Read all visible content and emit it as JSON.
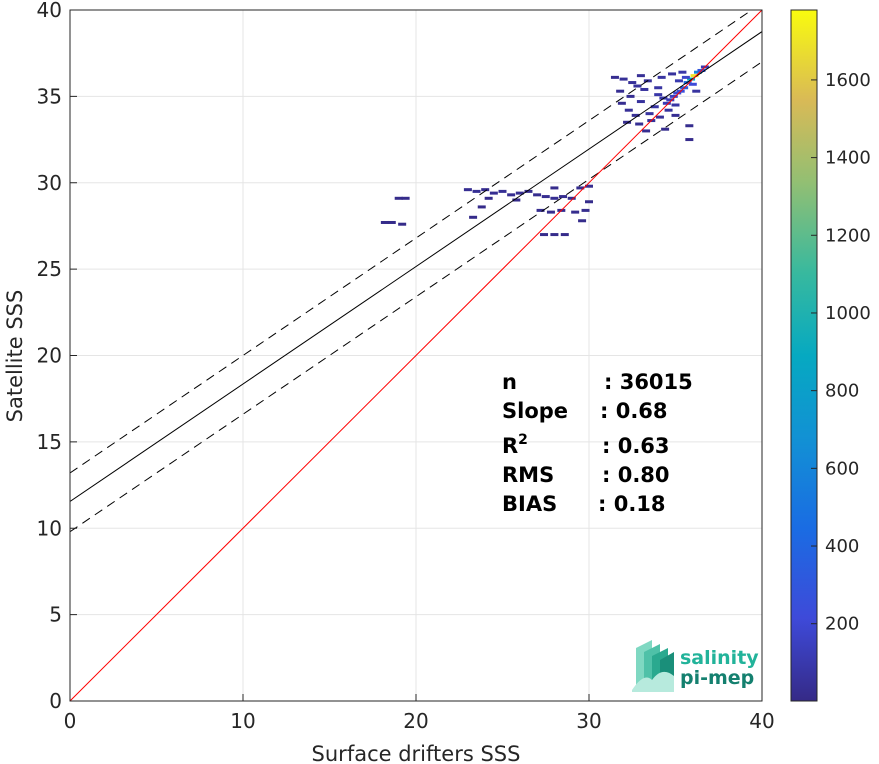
{
  "chart_data": {
    "type": "heatmap",
    "title": "",
    "xlabel": "Surface drifters SSS",
    "ylabel": "Satellite SSS",
    "xlim": [
      0,
      40
    ],
    "ylim": [
      0,
      40
    ],
    "xticks": [
      0,
      10,
      20,
      30,
      40
    ],
    "yticks": [
      0,
      5,
      10,
      15,
      20,
      25,
      30,
      35,
      40
    ],
    "grid": true,
    "colorbar": {
      "range": [
        1,
        1780
      ],
      "ticks": [
        200,
        400,
        600,
        800,
        1000,
        1200,
        1400,
        1600
      ],
      "colormap": "parula"
    },
    "lines": {
      "identity": {
        "slope": 1,
        "intercept": 0,
        "color": "#ff0000"
      },
      "fit": {
        "slope": 0.68,
        "intercept": 11.55,
        "color": "#000000"
      },
      "fit_upper": {
        "slope": 0.68,
        "intercept": 13.2,
        "color": "#000000",
        "style": "dashed"
      },
      "fit_lower": {
        "slope": 0.68,
        "intercept": 9.8,
        "color": "#000000",
        "style": "dashed"
      }
    },
    "stats": [
      {
        "label": "n",
        "value": ": 36015"
      },
      {
        "label": "Slope",
        "value": ": 0.68"
      },
      {
        "label": "R",
        "sup": "2",
        "value": ": 0.63"
      },
      {
        "label": "RMS",
        "value": ": 0.80"
      },
      {
        "label": "BIAS",
        "value": ": 0.18"
      }
    ],
    "points": [
      [
        36.1,
        36.2,
        1700
      ],
      [
        35.9,
        36.0,
        900
      ],
      [
        36.3,
        36.4,
        600
      ],
      [
        35.7,
        35.8,
        450
      ],
      [
        35.5,
        35.5,
        350
      ],
      [
        36.5,
        36.5,
        300
      ],
      [
        35.3,
        35.3,
        250
      ],
      [
        35.1,
        35.2,
        200
      ],
      [
        34.9,
        35.0,
        160
      ],
      [
        36.0,
        35.7,
        220
      ],
      [
        35.6,
        36.1,
        180
      ],
      [
        34.7,
        34.8,
        140
      ],
      [
        34.5,
        34.6,
        120
      ],
      [
        36.7,
        36.7,
        110
      ],
      [
        34.3,
        34.9,
        100
      ],
      [
        34.0,
        35.1,
        90
      ],
      [
        33.8,
        34.4,
        80
      ],
      [
        33.5,
        34.0,
        70
      ],
      [
        33.2,
        35.4,
        60
      ],
      [
        32.8,
        35.6,
        55
      ],
      [
        32.5,
        35.8,
        50
      ],
      [
        32.0,
        36.0,
        45
      ],
      [
        33.0,
        34.7,
        60
      ],
      [
        33.4,
        35.9,
        50
      ],
      [
        34.2,
        36.1,
        70
      ],
      [
        34.8,
        36.3,
        60
      ],
      [
        32.3,
        34.2,
        45
      ],
      [
        32.7,
        33.9,
        40
      ],
      [
        33.6,
        33.6,
        50
      ],
      [
        34.1,
        33.8,
        45
      ],
      [
        32.9,
        33.4,
        35
      ],
      [
        34.6,
        34.2,
        60
      ],
      [
        35.0,
        34.5,
        80
      ],
      [
        31.8,
        35.3,
        30
      ],
      [
        31.5,
        36.1,
        25
      ],
      [
        35.8,
        33.3,
        20
      ],
      [
        35.8,
        32.5,
        15
      ],
      [
        33.3,
        33.0,
        25
      ],
      [
        34.4,
        33.1,
        20
      ],
      [
        32.2,
        33.5,
        20
      ],
      [
        35.2,
        35.9,
        110
      ],
      [
        34.0,
        35.5,
        75
      ],
      [
        33.0,
        36.2,
        40
      ],
      [
        35.4,
        36.4,
        90
      ],
      [
        36.2,
        35.3,
        70
      ],
      [
        35.0,
        33.9,
        30
      ],
      [
        32.4,
        35.0,
        30
      ],
      [
        31.9,
        34.6,
        25
      ],
      [
        23.0,
        29.6,
        30
      ],
      [
        23.5,
        29.5,
        35
      ],
      [
        24.0,
        29.6,
        25
      ],
      [
        24.5,
        29.4,
        30
      ],
      [
        25.0,
        29.5,
        35
      ],
      [
        25.5,
        29.3,
        25
      ],
      [
        26.0,
        29.4,
        30
      ],
      [
        26.5,
        29.5,
        25
      ],
      [
        27.0,
        29.3,
        20
      ],
      [
        27.5,
        29.2,
        25
      ],
      [
        28.0,
        29.1,
        30
      ],
      [
        28.5,
        29.2,
        25
      ],
      [
        29.0,
        29.1,
        20
      ],
      [
        29.5,
        29.7,
        25
      ],
      [
        30.0,
        29.8,
        20
      ],
      [
        27.2,
        28.4,
        25
      ],
      [
        27.8,
        28.3,
        20
      ],
      [
        28.4,
        28.4,
        25
      ],
      [
        29.2,
        28.3,
        20
      ],
      [
        29.8,
        28.4,
        20
      ],
      [
        28.0,
        29.7,
        15
      ],
      [
        24.2,
        29.1,
        15
      ],
      [
        23.8,
        28.6,
        10
      ],
      [
        25.8,
        29.0,
        15
      ],
      [
        27.4,
        27.0,
        15
      ],
      [
        28.0,
        27.0,
        12
      ],
      [
        28.6,
        27.0,
        10
      ],
      [
        29.6,
        27.8,
        12
      ],
      [
        30.0,
        28.9,
        12
      ],
      [
        19.0,
        29.1,
        8
      ],
      [
        19.4,
        29.1,
        8
      ],
      [
        18.2,
        27.7,
        8
      ],
      [
        18.6,
        27.7,
        8
      ],
      [
        19.2,
        27.6,
        6
      ],
      [
        23.3,
        28.0,
        10
      ]
    ]
  },
  "logo": {
    "line1": "salinity",
    "line2": "pi-mep"
  }
}
